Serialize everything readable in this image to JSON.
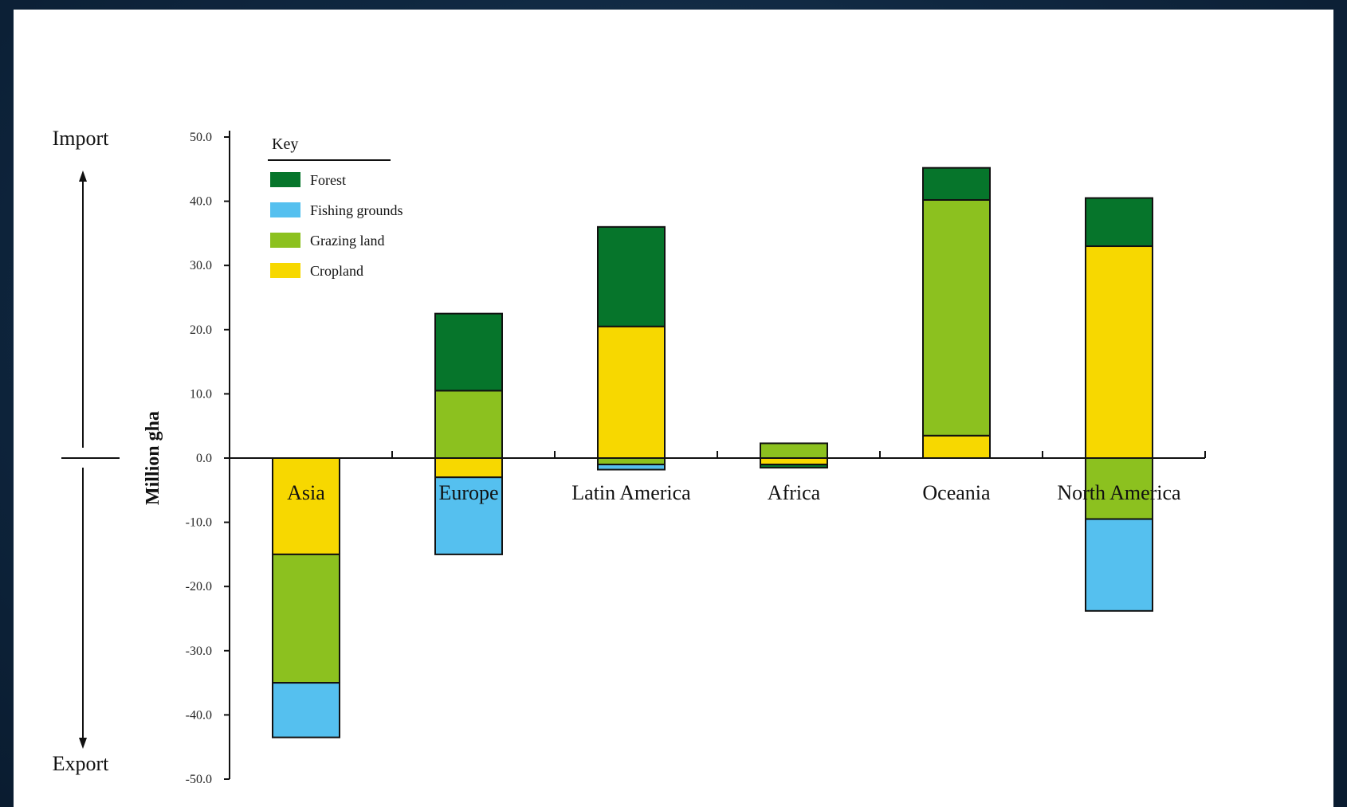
{
  "chart_data": {
    "type": "bar",
    "stacked": true,
    "ylabel": "Million gha",
    "ylim": [
      -50,
      50
    ],
    "yticks": [
      "50.0",
      "40.0",
      "30.0",
      "20.0",
      "10.0",
      "0.0",
      "-10.0",
      "-20.0",
      "-30.0",
      "-40.0",
      "-50.0"
    ],
    "ytick_values": [
      50,
      40,
      30,
      20,
      10,
      0,
      -10,
      -20,
      -30,
      -40,
      -50
    ],
    "direction_labels": {
      "up": "Import",
      "down": "Export"
    },
    "legend": {
      "title": "Key",
      "placement": "top-left"
    },
    "categories": [
      "Asia",
      "Europe",
      "Latin America",
      "Africa",
      "Oceania",
      "North America"
    ],
    "series": [
      {
        "name": "Cropland",
        "color": "#f7d800",
        "values": [
          -15,
          -3,
          20.5,
          -1,
          3.5,
          33
        ]
      },
      {
        "name": "Grazing land",
        "color": "#8cc11f",
        "values": [
          -20,
          10.5,
          -1,
          2.3,
          36.7,
          -9.5
        ]
      },
      {
        "name": "Fishing grounds",
        "color": "#55c0ef",
        "values": [
          -8.5,
          -12,
          -0.8,
          0,
          0,
          -14.3
        ]
      },
      {
        "name": "Forest",
        "color": "#06752b",
        "values": [
          0,
          12,
          15.5,
          -0.5,
          5,
          7.5
        ]
      }
    ],
    "legend_order": [
      "Forest",
      "Fishing grounds",
      "Grazing land",
      "Cropland"
    ]
  }
}
